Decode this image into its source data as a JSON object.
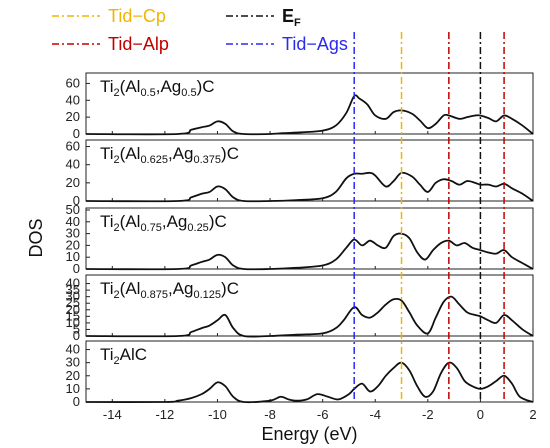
{
  "chart_data": {
    "type": "line",
    "xlabel": "Energy (eV)",
    "ylabel": "DOS",
    "xlim": [
      -15,
      2
    ],
    "xticks": [
      -14,
      -12,
      -10,
      -8,
      -6,
      -4,
      -2,
      0,
      2
    ],
    "legend": [
      {
        "label": "Tid−Cp",
        "color": "#f2b400",
        "x": -3.0
      },
      {
        "label": "E",
        "sub": "F",
        "color": "#111111",
        "x": 0.0
      },
      {
        "label": "Tid−Alp",
        "color": "#c00000",
        "x": -1.2
      },
      {
        "label": "Tid−Ags",
        "color": "#2a2af0",
        "x": -4.8
      }
    ],
    "extra_line": {
      "color": "#c00000",
      "x": 0.9
    },
    "panels": [
      {
        "label_parts": [
          [
            "Ti",
            ""
          ],
          [
            "2",
            "sub"
          ],
          [
            "(Al",
            ""
          ],
          [
            "0.5",
            "sub"
          ],
          [
            ",Ag",
            ""
          ],
          [
            "0.5",
            "sub"
          ],
          [
            ")C",
            ""
          ]
        ],
        "ylim": [
          0,
          70
        ],
        "yticks": [
          0,
          20,
          40,
          60
        ],
        "x": [
          -15,
          -11.5,
          -11,
          -10.6,
          -10.3,
          -10,
          -9.7,
          -9.4,
          -9,
          -8,
          -7.5,
          -6.8,
          -6,
          -5.5,
          -5.1,
          -4.8,
          -4.6,
          -4.3,
          -4,
          -3.6,
          -3.3,
          -3,
          -2.6,
          -2.3,
          -2,
          -1.7,
          -1.4,
          -1.2,
          -0.8,
          -0.5,
          -0.2,
          0,
          0.3,
          0.6,
          0.9,
          1.2,
          1.6,
          2
        ],
        "y": [
          0,
          0,
          5,
          8,
          10,
          15,
          12,
          3,
          0,
          0,
          1,
          2,
          4,
          10,
          25,
          45,
          42,
          35,
          22,
          18,
          26,
          28,
          24,
          16,
          7,
          12,
          22,
          22,
          18,
          20,
          22,
          22,
          19,
          15,
          22,
          18,
          10,
          0
        ]
      },
      {
        "label_parts": [
          [
            "Ti",
            ""
          ],
          [
            "2",
            "sub"
          ],
          [
            "(Al",
            ""
          ],
          [
            "0.625",
            "sub"
          ],
          [
            ",Ag",
            ""
          ],
          [
            "0.375",
            "sub"
          ],
          [
            ")C",
            ""
          ]
        ],
        "ylim": [
          0,
          65
        ],
        "yticks": [
          0,
          20,
          40,
          60
        ],
        "x": [
          -15,
          -11.5,
          -11,
          -10.6,
          -10.3,
          -10,
          -9.7,
          -9.4,
          -9,
          -8,
          -7,
          -6,
          -5.5,
          -5.1,
          -4.8,
          -4.5,
          -4.2,
          -4,
          -3.6,
          -3.3,
          -3,
          -2.6,
          -2.3,
          -2,
          -1.7,
          -1.4,
          -1.1,
          -0.8,
          -0.5,
          -0.2,
          0,
          0.3,
          0.6,
          0.9,
          1.2,
          1.6,
          2
        ],
        "y": [
          0,
          0,
          4,
          8,
          10,
          16,
          13,
          4,
          0,
          0,
          1,
          3,
          10,
          25,
          30,
          30,
          31,
          28,
          16,
          22,
          31,
          27,
          18,
          10,
          20,
          24,
          22,
          18,
          22,
          20,
          18,
          18,
          16,
          19,
          14,
          8,
          0
        ]
      },
      {
        "label_parts": [
          [
            "Ti",
            ""
          ],
          [
            "2",
            "sub"
          ],
          [
            "(Al",
            ""
          ],
          [
            "0.75",
            "sub"
          ],
          [
            ",Ag",
            ""
          ],
          [
            "0.25",
            "sub"
          ],
          [
            ")C",
            ""
          ]
        ],
        "ylim": [
          0,
          50
        ],
        "yticks": [
          0,
          10,
          20,
          30,
          40,
          50
        ],
        "x": [
          -15,
          -11.5,
          -11,
          -10.6,
          -10.3,
          -10,
          -9.7,
          -9.4,
          -9,
          -8,
          -7,
          -6,
          -5.5,
          -5.1,
          -4.8,
          -4.5,
          -4.2,
          -3.9,
          -3.6,
          -3.3,
          -3,
          -2.7,
          -2.4,
          -2.1,
          -1.8,
          -1.5,
          -1.2,
          -0.9,
          -0.6,
          -0.3,
          0,
          0.3,
          0.6,
          0.9,
          1.2,
          1.6,
          2
        ],
        "y": [
          0,
          0,
          3,
          6,
          8,
          12,
          10,
          3,
          0,
          0,
          1,
          3,
          8,
          18,
          25,
          20,
          24,
          20,
          18,
          28,
          30,
          26,
          14,
          8,
          16,
          22,
          24,
          20,
          22,
          18,
          16,
          14,
          13,
          16,
          10,
          5,
          0
        ]
      },
      {
        "label_parts": [
          [
            "Ti",
            ""
          ],
          [
            "2",
            "sub"
          ],
          [
            "(Al",
            ""
          ],
          [
            "0.875",
            "sub"
          ],
          [
            ",Ag",
            ""
          ],
          [
            "0.125",
            "sub"
          ],
          [
            ")C",
            ""
          ]
        ],
        "ylim": [
          0,
          45
        ],
        "yticks": [
          0,
          5,
          10,
          15,
          20,
          25,
          30,
          35,
          40
        ],
        "x": [
          -15,
          -11.5,
          -11,
          -10.6,
          -10.3,
          -10,
          -9.7,
          -9.4,
          -9,
          -8,
          -7,
          -6,
          -5.5,
          -5.2,
          -4.8,
          -4.5,
          -4.2,
          -3.9,
          -3.6,
          -3.3,
          -3,
          -2.7,
          -2.4,
          -2,
          -1.7,
          -1.4,
          -1.1,
          -0.8,
          -0.5,
          -0.2,
          0,
          0.3,
          0.6,
          0.9,
          1.2,
          1.6,
          2
        ],
        "y": [
          0,
          0,
          3,
          6,
          8,
          12,
          16,
          6,
          0,
          0,
          1,
          2,
          6,
          12,
          22,
          16,
          14,
          18,
          24,
          28,
          27,
          18,
          8,
          2,
          14,
          26,
          30,
          24,
          18,
          16,
          15,
          12,
          10,
          16,
          12,
          5,
          0
        ]
      },
      {
        "label_parts": [
          [
            "Ti",
            ""
          ],
          [
            "2",
            "sub"
          ],
          [
            "AlC",
            ""
          ]
        ],
        "ylim": [
          0,
          45
        ],
        "yticks": [
          0,
          10,
          20,
          30,
          40
        ],
        "x": [
          -15,
          -12,
          -11.5,
          -11,
          -10.6,
          -10.3,
          -10,
          -9.7,
          -9.4,
          -9,
          -8,
          -7.6,
          -7.3,
          -7,
          -6.6,
          -6.2,
          -5.8,
          -5.4,
          -5,
          -4.8,
          -4.5,
          -4.2,
          -3.9,
          -3.6,
          -3.3,
          -3,
          -2.7,
          -2.4,
          -2.1,
          -1.8,
          -1.5,
          -1.2,
          -0.9,
          -0.6,
          -0.3,
          0,
          0.3,
          0.6,
          0.9,
          1.2,
          1.5,
          2
        ],
        "y": [
          0,
          0,
          1,
          3,
          6,
          10,
          15,
          12,
          4,
          0,
          1,
          4,
          2,
          1,
          2,
          6,
          4,
          2,
          6,
          10,
          14,
          8,
          12,
          20,
          26,
          30,
          24,
          12,
          4,
          8,
          22,
          30,
          26,
          16,
          12,
          10,
          12,
          16,
          20,
          14,
          4,
          0
        ]
      }
    ]
  }
}
